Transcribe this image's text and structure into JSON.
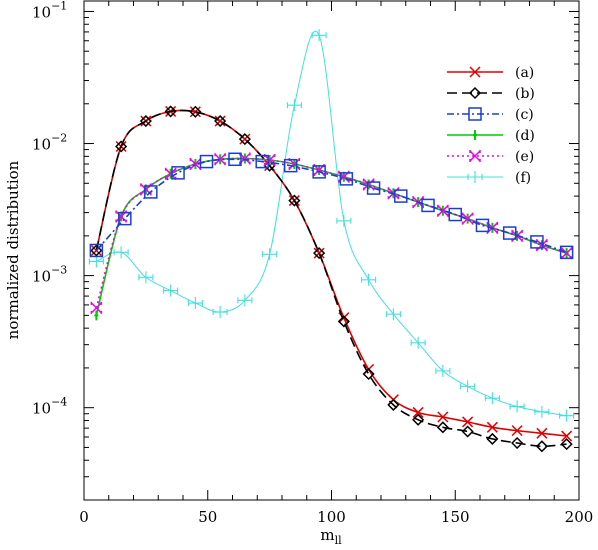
{
  "chart_data": {
    "type": "line",
    "title": "",
    "xlabel": "m_ll",
    "xlabel_main": "m",
    "xlabel_sub": "ll",
    "ylabel": "normalized distribution",
    "xlim": [
      0,
      200
    ],
    "ylim": [
      2e-05,
      0.12
    ],
    "yscale": "log",
    "grid": false,
    "legend_position": "top-right",
    "x_ticks": [
      {
        "value": 0,
        "label": "0"
      },
      {
        "value": 50,
        "label": "50"
      },
      {
        "value": 100,
        "label": "100"
      },
      {
        "value": 150,
        "label": "150"
      },
      {
        "value": 200,
        "label": "200"
      }
    ],
    "y_ticks": [
      {
        "value": 0.1,
        "base": "10",
        "exp": "−1"
      },
      {
        "value": 0.01,
        "base": "10",
        "exp": "−2"
      },
      {
        "value": 0.001,
        "base": "10",
        "exp": "−3"
      },
      {
        "value": 0.0001,
        "base": "10",
        "exp": "−4"
      }
    ],
    "series": [
      {
        "name": "(a)",
        "color": "#e00000",
        "dash": "",
        "marker": "x",
        "marker_step": 1,
        "x": [
          5,
          15,
          25,
          35,
          45,
          55,
          65,
          75,
          85,
          95,
          105,
          115,
          125,
          135,
          145,
          155,
          165,
          175,
          185,
          195
        ],
        "values": [
          0.00155,
          0.0095,
          0.0148,
          0.0175,
          0.0174,
          0.0148,
          0.0108,
          0.0068,
          0.0037,
          0.00148,
          0.00048,
          0.000195,
          0.000115,
          9.2e-05,
          8.5e-05,
          7.8e-05,
          7.1e-05,
          6.7e-05,
          6.4e-05,
          6.1e-05
        ]
      },
      {
        "name": "(b)",
        "color": "#000000",
        "dash": "10,5",
        "marker": "diamond",
        "marker_step": 1,
        "x": [
          5,
          15,
          25,
          35,
          45,
          55,
          65,
          75,
          85,
          95,
          105,
          115,
          125,
          135,
          145,
          155,
          165,
          175,
          185,
          195
        ],
        "values": [
          0.00155,
          0.0095,
          0.0148,
          0.0175,
          0.0174,
          0.0148,
          0.0108,
          0.0068,
          0.0037,
          0.00148,
          0.00045,
          0.00018,
          0.000105,
          8.1e-05,
          7.1e-05,
          6.6e-05,
          5.8e-05,
          5.4e-05,
          5.1e-05,
          5.3e-05
        ]
      },
      {
        "name": "(c)",
        "color": "#1a3fd0",
        "dash": "7,3,2,3",
        "marker": "square",
        "marker_step": 3,
        "x": [
          5,
          16.5,
          27,
          38,
          49.5,
          61,
          72,
          83.5,
          95,
          106,
          117,
          128,
          139,
          150,
          161,
          172,
          183,
          195
        ],
        "values": [
          0.00155,
          0.0027,
          0.0043,
          0.006,
          0.0073,
          0.0076,
          0.0073,
          0.0068,
          0.0061,
          0.0054,
          0.0046,
          0.004,
          0.0034,
          0.0029,
          0.0024,
          0.0021,
          0.0018,
          0.0015
        ]
      },
      {
        "name": "(d)",
        "color": "#00cc00",
        "dash": "",
        "marker": "tick",
        "marker_step": 1,
        "x": [
          5,
          15,
          25,
          35,
          45,
          55,
          65,
          75,
          85,
          95,
          105,
          115,
          125,
          135,
          145,
          155,
          165,
          175,
          185,
          195
        ],
        "values": [
          0.0005,
          0.0028,
          0.0045,
          0.0059,
          0.007,
          0.0076,
          0.0077,
          0.0075,
          0.007,
          0.0063,
          0.0056,
          0.0049,
          0.0042,
          0.0036,
          0.0031,
          0.0027,
          0.0023,
          0.002,
          0.0017,
          0.00148
        ]
      },
      {
        "name": "(e)",
        "color": "#ee00ee",
        "dash": "2,3",
        "marker": "xbox",
        "marker_step": 1,
        "x": [
          5,
          15,
          25,
          35,
          45,
          55,
          65,
          75,
          85,
          95,
          105,
          115,
          125,
          135,
          145,
          155,
          165,
          175,
          185,
          195
        ],
        "values": [
          0.00057,
          0.0028,
          0.0045,
          0.0059,
          0.007,
          0.0076,
          0.0077,
          0.0075,
          0.007,
          0.0063,
          0.0056,
          0.0049,
          0.0042,
          0.0036,
          0.0031,
          0.0027,
          0.0023,
          0.002,
          0.0017,
          0.00148
        ]
      },
      {
        "name": "(f)",
        "color": "#40e0e0",
        "dash": "",
        "marker": "errbar",
        "marker_step": 1,
        "x": [
          5,
          15,
          25,
          35,
          45,
          55,
          65,
          75,
          85,
          95,
          105,
          115,
          125,
          135,
          145,
          155,
          165,
          175,
          185,
          195
        ],
        "values": [
          0.00128,
          0.0015,
          0.00097,
          0.00077,
          0.00062,
          0.00053,
          0.00065,
          0.00145,
          0.0195,
          0.066,
          0.0026,
          0.00093,
          0.00051,
          0.00031,
          0.00019,
          0.000145,
          0.000118,
          0.000102,
          9.3e-05,
          8.7e-05
        ]
      }
    ]
  }
}
